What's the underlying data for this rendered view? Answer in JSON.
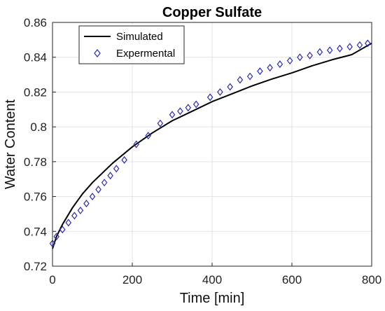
{
  "chart_data": {
    "type": "line",
    "title": "Copper Sulfate",
    "xlabel": "Time [min]",
    "ylabel": "Water Content",
    "xlim": [
      0,
      800
    ],
    "ylim": [
      0.72,
      0.86
    ],
    "xticks": [
      0,
      200,
      400,
      600,
      800
    ],
    "yticks": [
      0.72,
      0.74,
      0.76,
      0.78,
      0.8,
      0.82,
      0.84,
      0.86
    ],
    "xtick_labels": [
      "0",
      "200",
      "400",
      "600",
      "800"
    ],
    "ytick_labels": [
      "0.72",
      "0.74",
      "0.76",
      "0.78",
      "0.8",
      "0.82",
      "0.84",
      "0.86"
    ],
    "grid": true,
    "legend_position": "top-left",
    "series": [
      {
        "name": "Simulated",
        "style": "line",
        "color": "#000000",
        "x": [
          0,
          10,
          25,
          50,
          75,
          100,
          150,
          200,
          250,
          300,
          350,
          400,
          450,
          500,
          550,
          600,
          650,
          700,
          750,
          800
        ],
        "y": [
          0.73,
          0.737,
          0.744,
          0.7535,
          0.7615,
          0.768,
          0.779,
          0.7885,
          0.7965,
          0.8035,
          0.809,
          0.8145,
          0.819,
          0.8235,
          0.8275,
          0.831,
          0.835,
          0.8385,
          0.8415,
          0.848
        ]
      },
      {
        "name": "Expermental",
        "style": "markers",
        "marker": "diamond",
        "color": "#2b2bb5",
        "x": [
          0,
          10,
          25,
          40,
          55,
          70,
          85,
          100,
          115,
          130,
          145,
          160,
          180,
          210,
          240,
          270,
          300,
          320,
          340,
          360,
          395,
          420,
          445,
          470,
          495,
          520,
          545,
          570,
          595,
          620,
          645,
          670,
          695,
          720,
          745,
          770,
          790
        ],
        "y": [
          0.733,
          0.737,
          0.741,
          0.745,
          0.749,
          0.752,
          0.756,
          0.76,
          0.764,
          0.768,
          0.772,
          0.776,
          0.781,
          0.79,
          0.795,
          0.802,
          0.807,
          0.809,
          0.811,
          0.813,
          0.817,
          0.82,
          0.823,
          0.827,
          0.829,
          0.832,
          0.834,
          0.836,
          0.838,
          0.84,
          0.841,
          0.843,
          0.844,
          0.845,
          0.846,
          0.847,
          0.848
        ]
      }
    ]
  }
}
